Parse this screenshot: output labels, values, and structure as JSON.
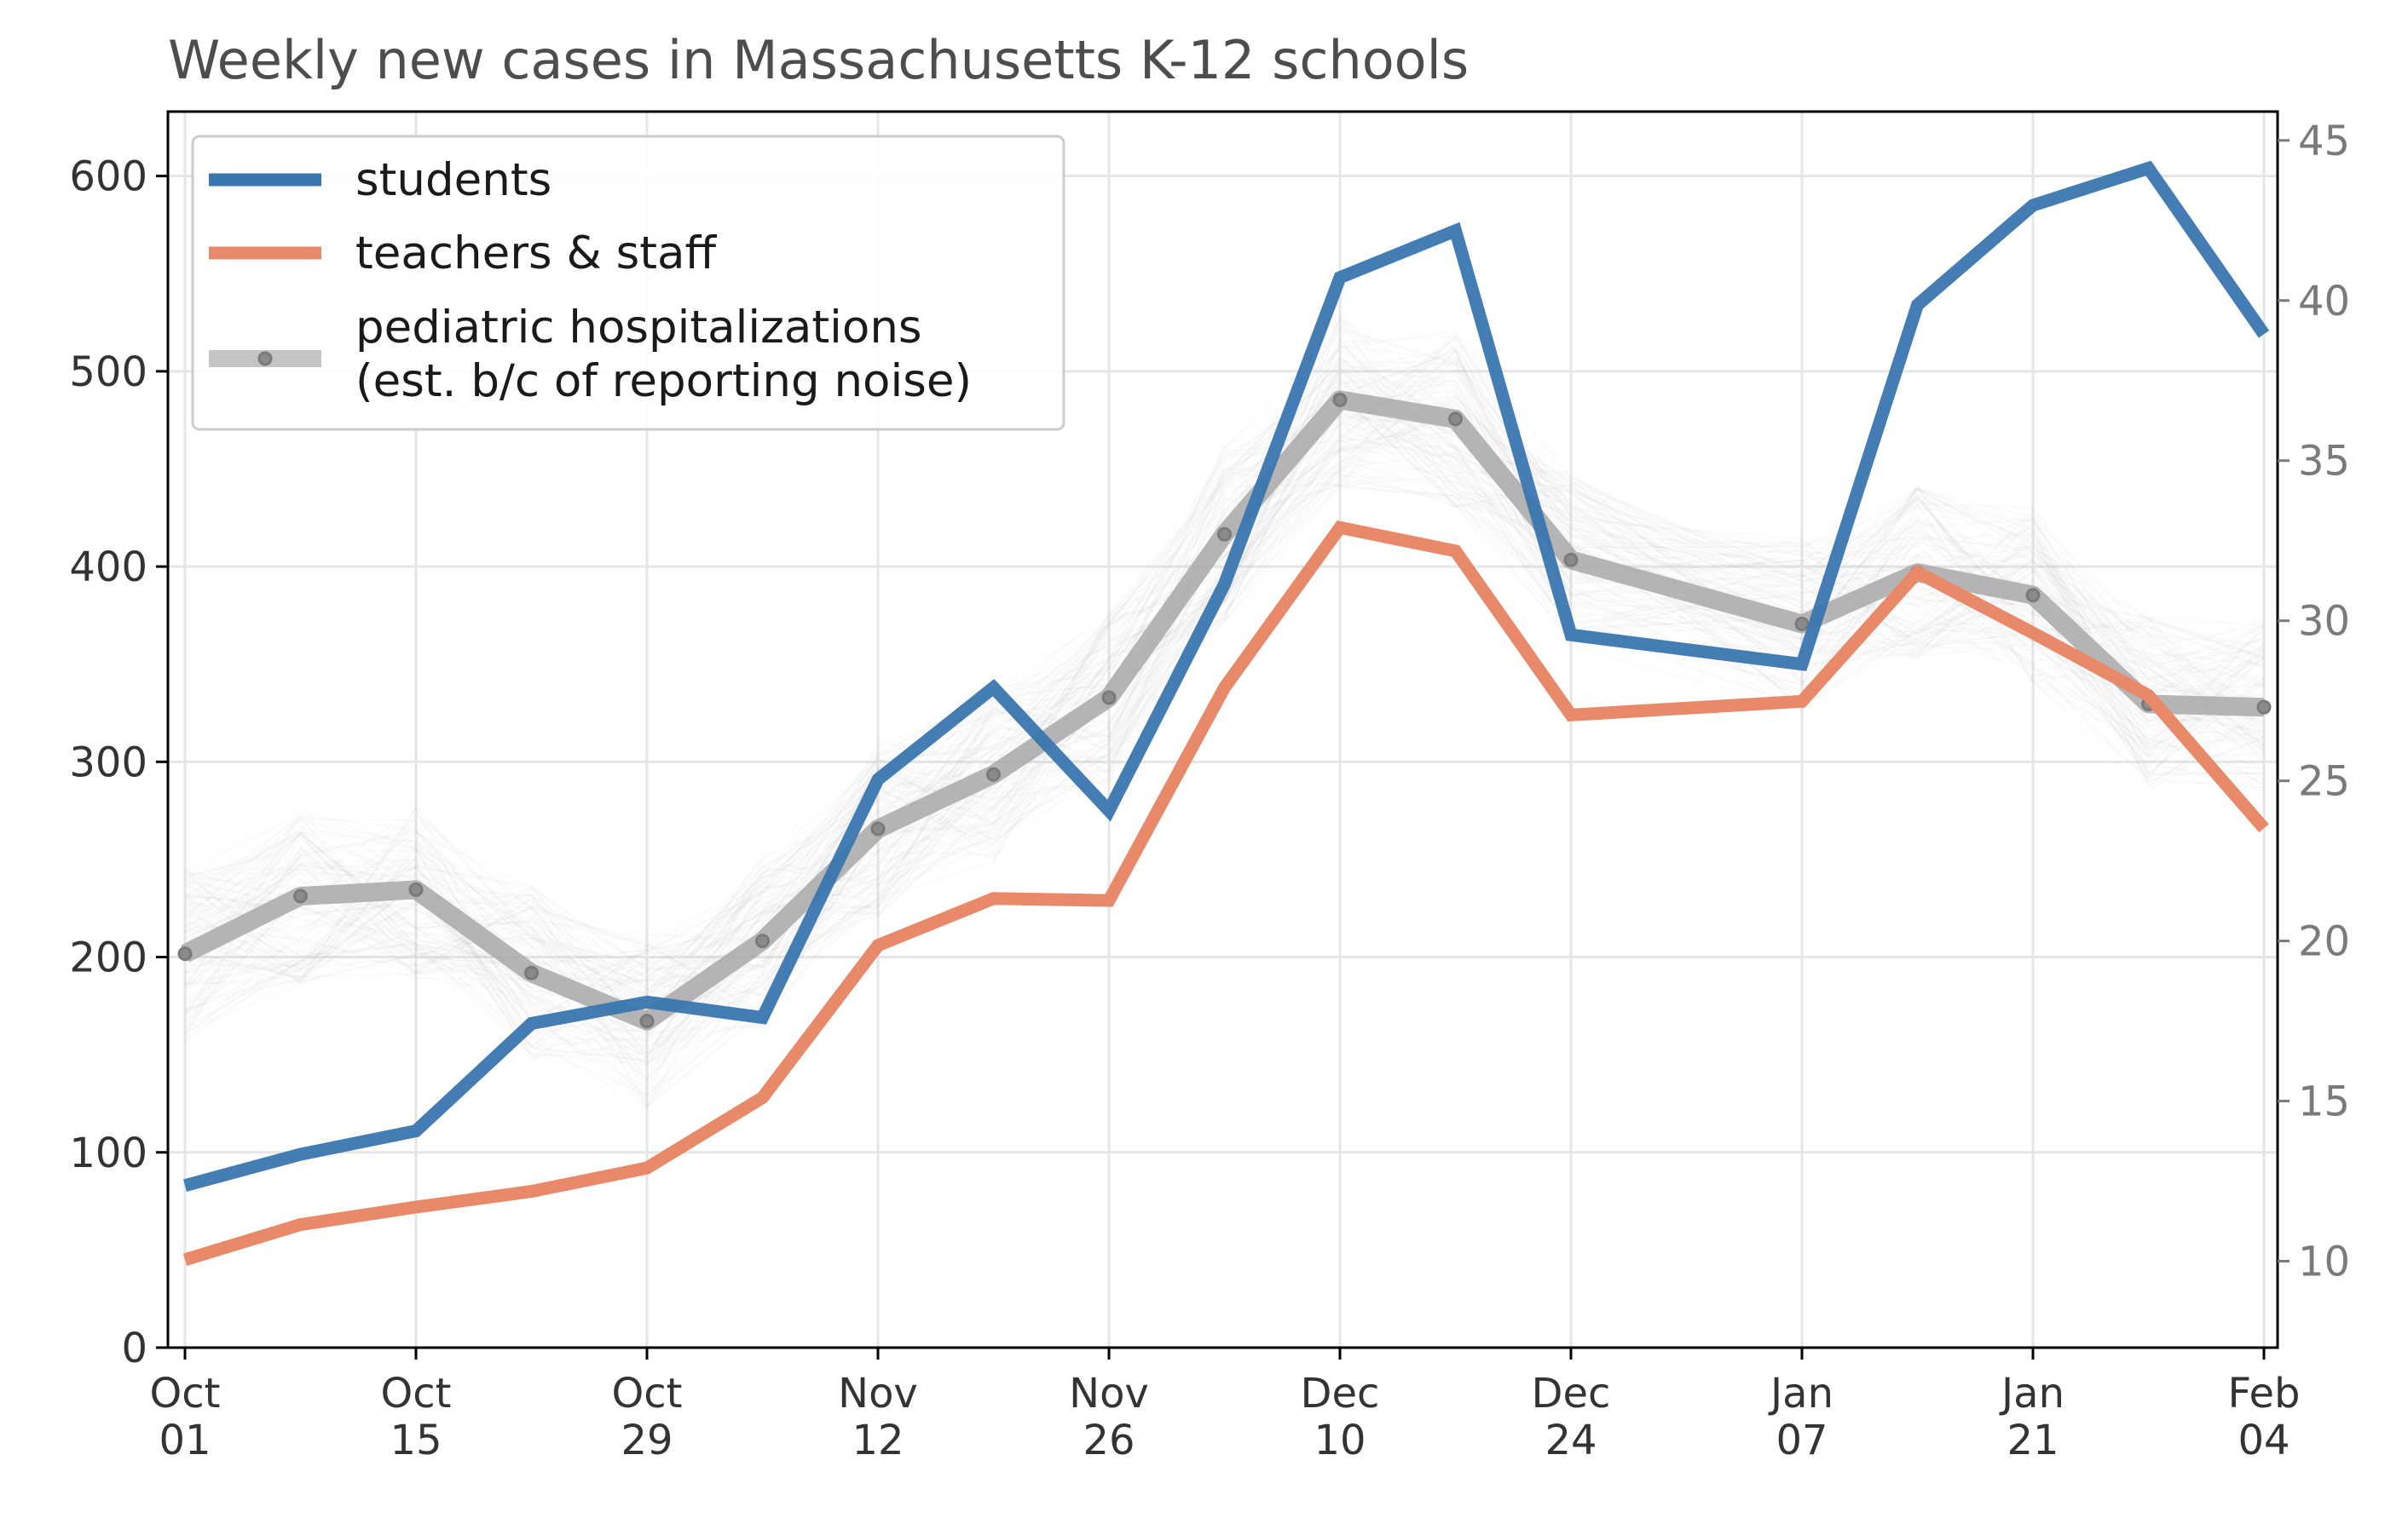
{
  "chart_data": {
    "type": "line",
    "title": "Weekly new cases in Massachusetts K-12 schools",
    "x": [
      "2020-10-01",
      "2020-10-08",
      "2020-10-15",
      "2020-10-22",
      "2020-10-29",
      "2020-11-05",
      "2020-11-12",
      "2020-11-19",
      "2020-11-26",
      "2020-12-03",
      "2020-12-10",
      "2020-12-17",
      "2020-12-24",
      "2021-01-07",
      "2021-01-14",
      "2021-01-21",
      "2021-01-28",
      "2021-02-04"
    ],
    "x_tick_labels": [
      {
        "month": "Oct",
        "day": "01"
      },
      {
        "month": "Oct",
        "day": "15"
      },
      {
        "month": "Oct",
        "day": "29"
      },
      {
        "month": "Nov",
        "day": "12"
      },
      {
        "month": "Nov",
        "day": "26"
      },
      {
        "month": "Dec",
        "day": "10"
      },
      {
        "month": "Dec",
        "day": "24"
      },
      {
        "month": "Jan",
        "day": "07"
      },
      {
        "month": "Jan",
        "day": "21"
      },
      {
        "month": "Feb",
        "day": "04"
      }
    ],
    "y_left": {
      "ylim": [
        0,
        633
      ],
      "ticks": [
        "0",
        "100",
        "200",
        "300",
        "400",
        "500",
        "600"
      ]
    },
    "y_right": {
      "ylim": [
        7.3,
        45.9
      ],
      "ticks": [
        "10",
        "15",
        "20",
        "25",
        "30",
        "35",
        "40",
        "45"
      ]
    },
    "grid": true,
    "legend_position": "top-left",
    "series": [
      {
        "name": "students",
        "axis": "left",
        "color": "#3a76b0",
        "values": [
          83,
          99,
          111,
          166,
          177,
          169,
          291,
          338,
          275,
          391,
          548,
          572,
          365,
          350,
          534,
          585,
          604,
          519
        ]
      },
      {
        "name": "teachers & staff",
        "axis": "left",
        "color": "#e8896a",
        "values": [
          45,
          63,
          72,
          80,
          92,
          128,
          206,
          230,
          229,
          338,
          420,
          408,
          324,
          331,
          397,
          366,
          334,
          266
        ]
      },
      {
        "name": "pediatric hospitalizations\n(est. b/c of reporting noise)",
        "legend_lines": [
          "pediatric hospitalizations",
          "(est. b/c of reporting noise)"
        ],
        "axis": "right",
        "color": "#a8a8a8",
        "values": [
          19.6,
          21.4,
          21.6,
          19.0,
          17.5,
          20.0,
          23.5,
          25.2,
          27.6,
          32.7,
          36.9,
          36.3,
          31.9,
          29.9,
          31.5,
          30.8,
          27.4,
          27.3
        ]
      }
    ]
  }
}
